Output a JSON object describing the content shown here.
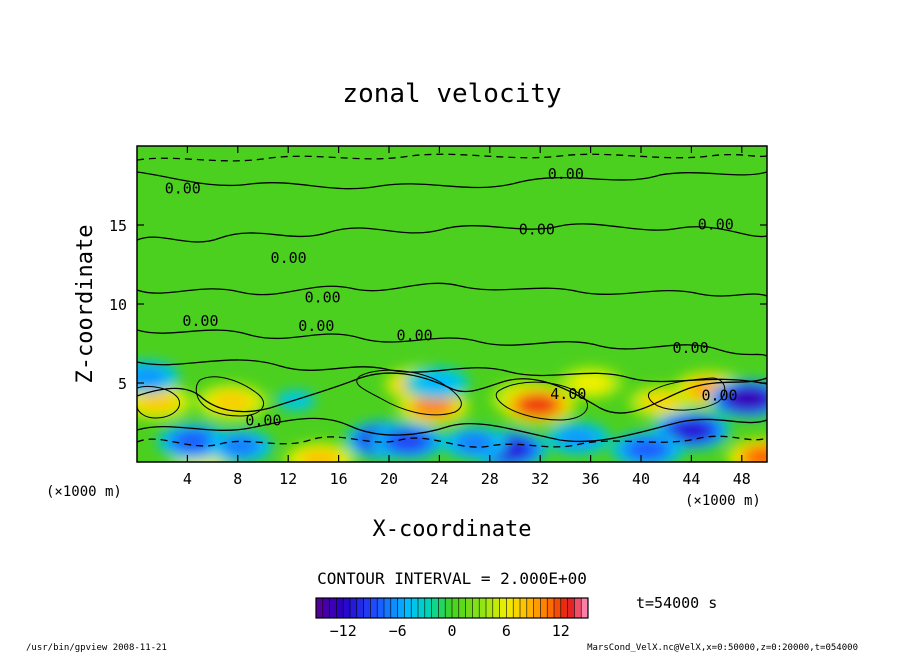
{
  "chart_data": {
    "type": "heatmap",
    "title": "zonal velocity",
    "xlabel": "X-coordinate",
    "ylabel": "Z-coordinate",
    "x_unit": "(×1000 m)",
    "y_unit": "(×1000 m)",
    "xlim": [
      0,
      50
    ],
    "ylim": [
      0,
      20
    ],
    "xticks": [
      4,
      8,
      12,
      16,
      20,
      24,
      28,
      32,
      36,
      40,
      44,
      48
    ],
    "yticks": [
      5,
      10,
      15
    ],
    "contour_interval_label": "CONTOUR INTERVAL = 2.000E+00",
    "time_label": "t=54000 s",
    "colorbar": {
      "min": -15,
      "max": 15,
      "ticks": [
        -12,
        -6,
        0,
        6,
        12
      ]
    },
    "contour_labels": [
      {
        "text": "0.00",
        "x": 2.2,
        "z": 17.0
      },
      {
        "text": "0.00",
        "x": 32.6,
        "z": 17.9
      },
      {
        "text": "0.00",
        "x": 30.3,
        "z": 14.4
      },
      {
        "text": "0.00",
        "x": 44.5,
        "z": 14.7
      },
      {
        "text": "0.00",
        "x": 10.6,
        "z": 12.6
      },
      {
        "text": "0.00",
        "x": 13.3,
        "z": 10.1
      },
      {
        "text": "0.00",
        "x": 3.6,
        "z": 8.6
      },
      {
        "text": "0.00",
        "x": 12.8,
        "z": 8.3
      },
      {
        "text": "0.00",
        "x": 20.6,
        "z": 7.7
      },
      {
        "text": "0.00",
        "x": 42.5,
        "z": 6.9
      },
      {
        "text": "0.00",
        "x": 44.8,
        "z": 3.9
      },
      {
        "text": "0.00",
        "x": 8.6,
        "z": 2.3
      },
      {
        "text": "4.00",
        "x": 32.8,
        "z": 4.0
      }
    ],
    "blobs": [
      {
        "x": 1.6,
        "z": 3.8,
        "value": 7.5
      },
      {
        "x": 7.5,
        "z": 3.8,
        "value": 7.5
      },
      {
        "x": 22.5,
        "z": 4.9,
        "value": 9.0
      },
      {
        "x": 23.5,
        "z": 3.5,
        "value": 10.0
      },
      {
        "x": 31.0,
        "z": 4.0,
        "value": 8.0
      },
      {
        "x": 31.8,
        "z": 3.6,
        "value": 12.0
      },
      {
        "x": 36.0,
        "z": 5.0,
        "value": 6.0
      },
      {
        "x": 41.6,
        "z": 3.8,
        "value": 7.0
      },
      {
        "x": 45.4,
        "z": 4.6,
        "value": 9.0
      },
      {
        "x": 49.8,
        "z": 0.3,
        "value": 11.0
      },
      {
        "x": 14.5,
        "z": 0.1,
        "value": 8.0
      },
      {
        "x": 5.2,
        "z": 0.2,
        "value": 6.0
      },
      {
        "x": 4.5,
        "z": 1.3,
        "value": -8.0
      },
      {
        "x": 8.2,
        "z": 1.0,
        "value": -7.0
      },
      {
        "x": 19.6,
        "z": 1.4,
        "value": -11.0
      },
      {
        "x": 21.5,
        "z": 1.3,
        "value": -9.0
      },
      {
        "x": 29.5,
        "z": 0.8,
        "value": -11.0
      },
      {
        "x": 26.8,
        "z": 1.2,
        "value": -7.0
      },
      {
        "x": 44.0,
        "z": 2.0,
        "value": -11.0
      },
      {
        "x": 40.5,
        "z": 0.8,
        "value": -8.0
      },
      {
        "x": 48.5,
        "z": 4.0,
        "value": -13.0
      },
      {
        "x": 23.8,
        "z": 5.0,
        "value": -5.0
      },
      {
        "x": 0.8,
        "z": 5.4,
        "value": -6.0
      },
      {
        "x": 12.6,
        "z": 3.9,
        "value": -4.0
      },
      {
        "x": 35.0,
        "z": 1.5,
        "value": -6.0
      }
    ]
  },
  "footer": {
    "left": "/usr/bin/gpview   2008-11-21",
    "right": "MarsCond_VelX.nc@VelX,x=0:50000,z=0:20000,t=054000"
  },
  "colors": {
    "background_field": "#4cd01f"
  }
}
